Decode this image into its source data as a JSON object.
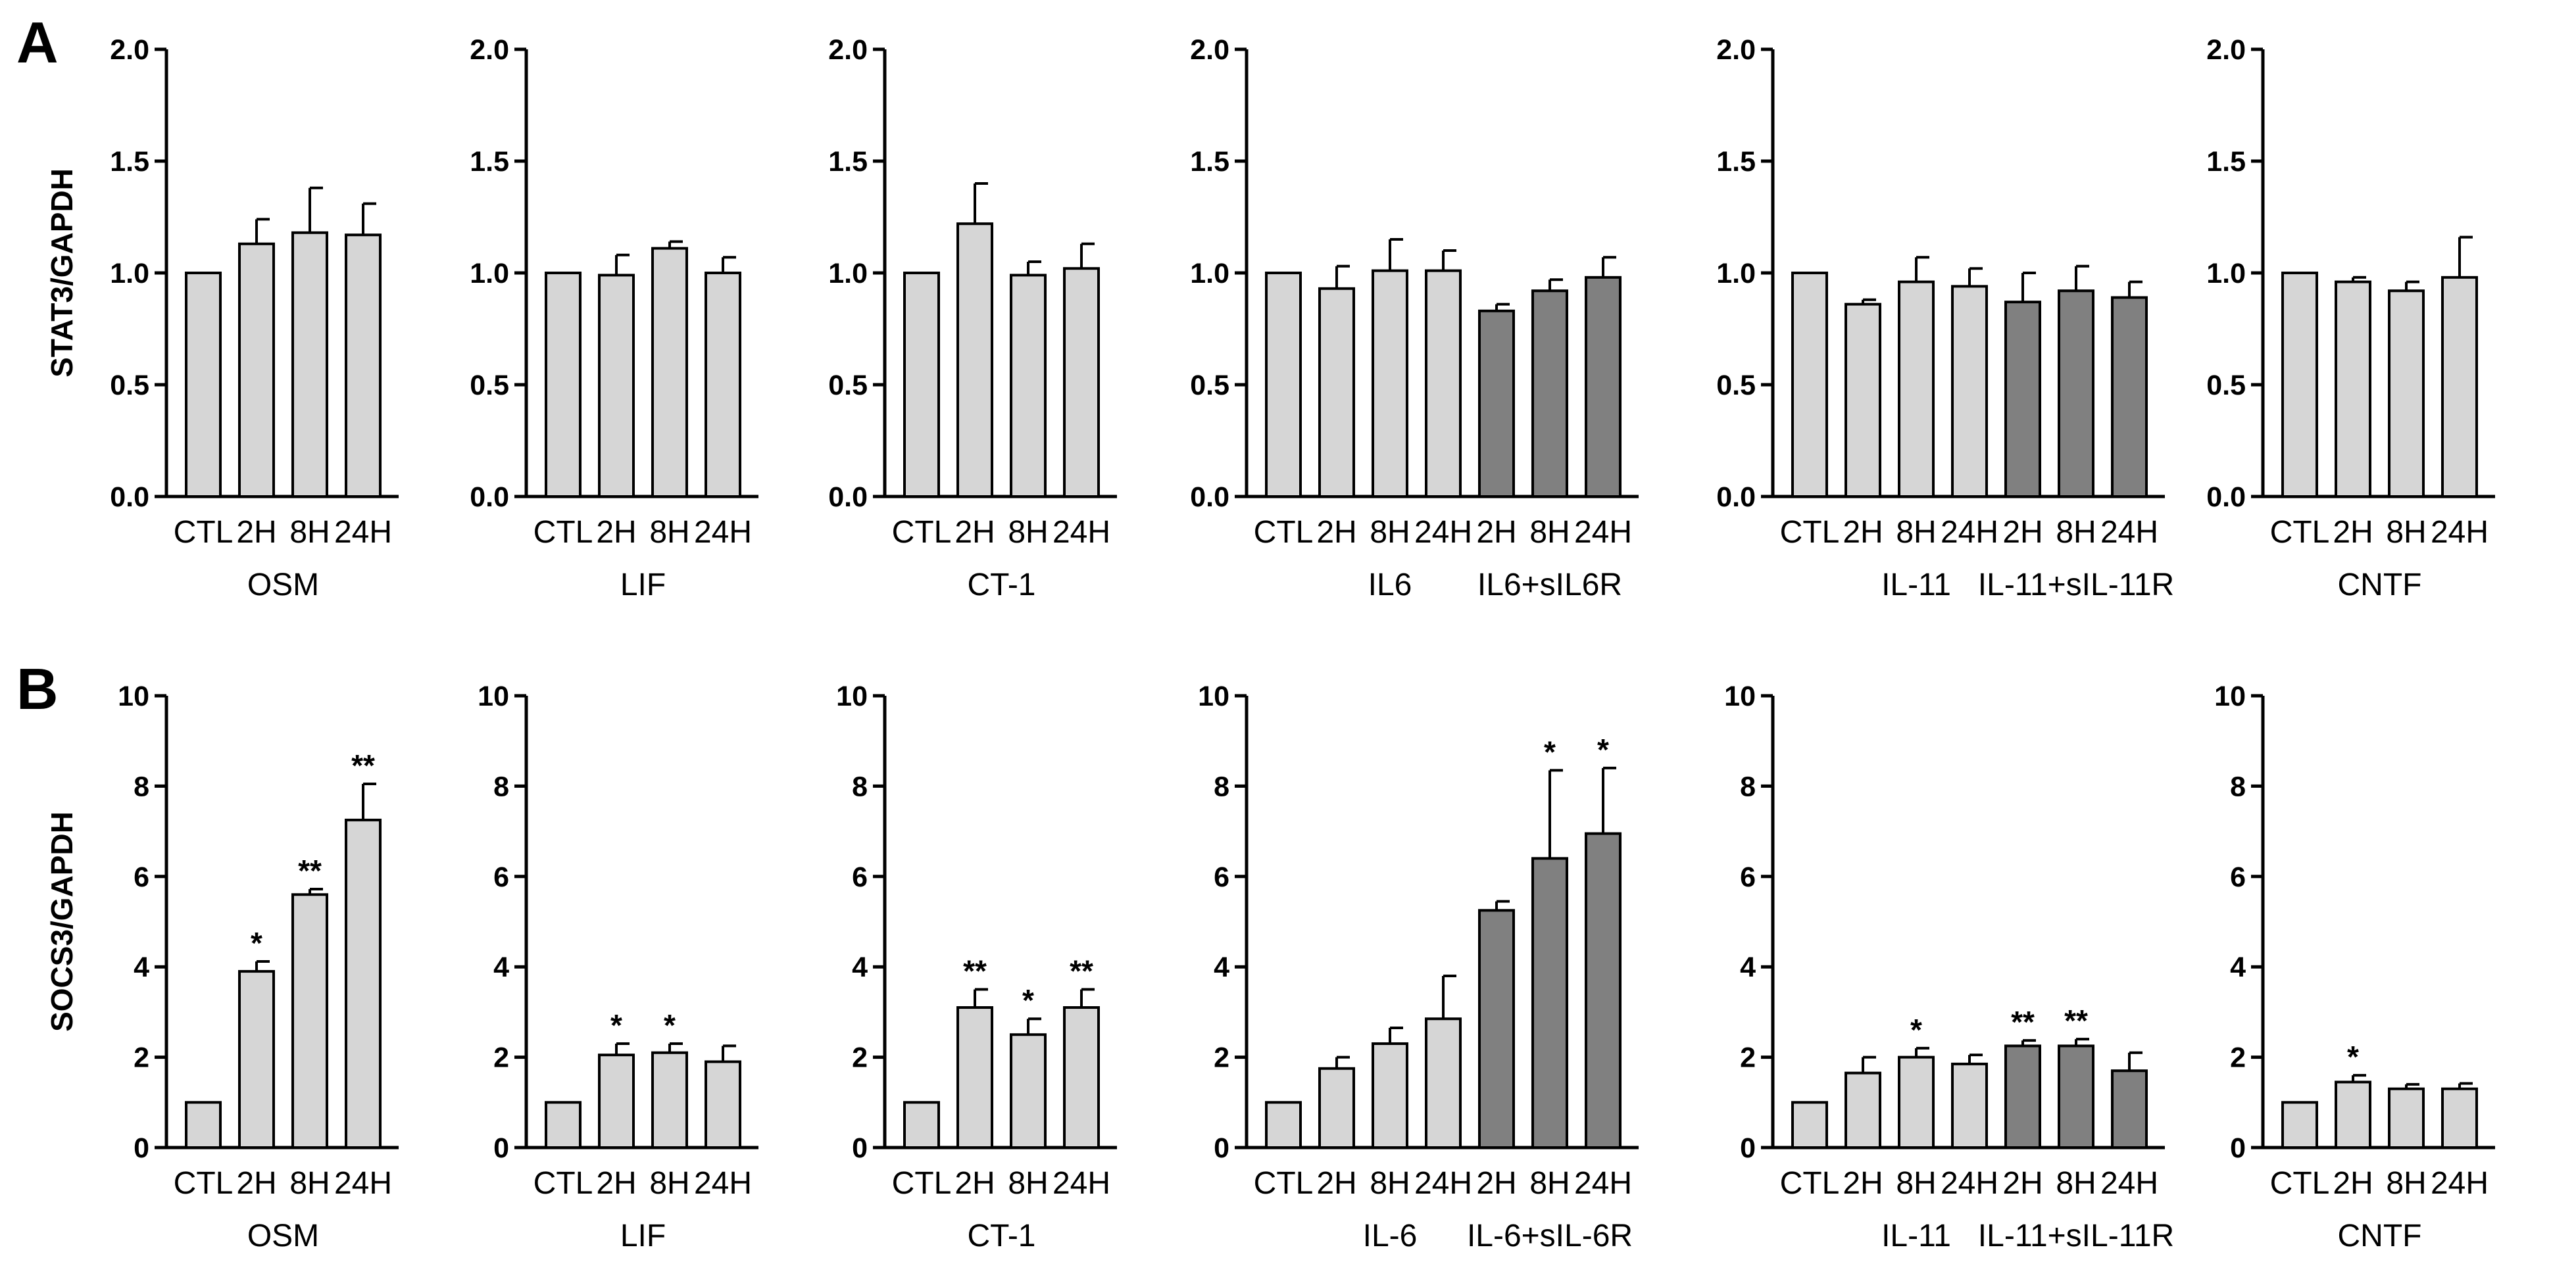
{
  "colors": {
    "light": "#d6d6d6",
    "dark": "#808080",
    "stroke": "#000000"
  },
  "chart_data": [
    {
      "type": "bar",
      "panel": "A",
      "panel_letter": "A",
      "ylabel": "STAT3/GAPDH",
      "ylim": [
        0,
        2.0
      ],
      "yticks": [
        "0.0",
        "0.5",
        "1.0",
        "1.5",
        "2.0"
      ],
      "categories": [
        "CTL",
        "2H",
        "8H",
        "24H"
      ],
      "values": [
        1.0,
        1.13,
        1.18,
        1.17
      ],
      "errors": [
        0,
        0.11,
        0.2,
        0.14
      ],
      "dark": [
        false,
        false,
        false,
        false
      ],
      "significance": [
        "",
        "",
        "",
        ""
      ],
      "groups": [
        {
          "label": "OSM",
          "start": 0,
          "end": 3
        }
      ]
    },
    {
      "type": "bar",
      "panel": "A",
      "ylim": [
        0,
        2.0
      ],
      "yticks": [
        "0.0",
        "0.5",
        "1.0",
        "1.5",
        "2.0"
      ],
      "categories": [
        "CTL",
        "2H",
        "8H",
        "24H"
      ],
      "values": [
        1.0,
        0.99,
        1.11,
        1.0
      ],
      "errors": [
        0,
        0.09,
        0.03,
        0.07
      ],
      "dark": [
        false,
        false,
        false,
        false
      ],
      "significance": [
        "",
        "",
        "",
        ""
      ],
      "groups": [
        {
          "label": "LIF",
          "start": 0,
          "end": 3
        }
      ]
    },
    {
      "type": "bar",
      "panel": "A",
      "ylim": [
        0,
        2.0
      ],
      "yticks": [
        "0.0",
        "0.5",
        "1.0",
        "1.5",
        "2.0"
      ],
      "categories": [
        "CTL",
        "2H",
        "8H",
        "24H"
      ],
      "values": [
        1.0,
        1.22,
        0.99,
        1.02
      ],
      "errors": [
        0,
        0.18,
        0.06,
        0.11
      ],
      "dark": [
        false,
        false,
        false,
        false
      ],
      "significance": [
        "",
        "",
        "",
        ""
      ],
      "groups": [
        {
          "label": "CT-1",
          "start": 0,
          "end": 3
        }
      ]
    },
    {
      "type": "bar",
      "panel": "A",
      "ylim": [
        0,
        2.0
      ],
      "yticks": [
        "0.0",
        "0.5",
        "1.0",
        "1.5",
        "2.0"
      ],
      "categories": [
        "CTL",
        "2H",
        "8H",
        "24H",
        "2H",
        "8H",
        "24H"
      ],
      "values": [
        1.0,
        0.93,
        1.01,
        1.01,
        0.83,
        0.92,
        0.98
      ],
      "errors": [
        0,
        0.1,
        0.14,
        0.09,
        0.03,
        0.05,
        0.09
      ],
      "dark": [
        false,
        false,
        false,
        false,
        true,
        true,
        true
      ],
      "significance": [
        "",
        "",
        "",
        "",
        "",
        "",
        ""
      ],
      "groups": [
        {
          "label": "IL6",
          "start": 1,
          "end": 3
        },
        {
          "label": "IL6+sIL6R",
          "start": 4,
          "end": 6
        }
      ]
    },
    {
      "type": "bar",
      "panel": "A",
      "ylim": [
        0,
        2.0
      ],
      "yticks": [
        "0.0",
        "0.5",
        "1.0",
        "1.5",
        "2.0"
      ],
      "categories": [
        "CTL",
        "2H",
        "8H",
        "24H",
        "2H",
        "8H",
        "24H"
      ],
      "values": [
        1.0,
        0.86,
        0.96,
        0.94,
        0.87,
        0.92,
        0.89
      ],
      "errors": [
        0,
        0.02,
        0.11,
        0.08,
        0.13,
        0.11,
        0.07
      ],
      "dark": [
        false,
        false,
        false,
        false,
        true,
        true,
        true
      ],
      "significance": [
        "",
        "",
        "",
        "",
        "",
        "",
        ""
      ],
      "groups": [
        {
          "label": "IL-11",
          "start": 1,
          "end": 3
        },
        {
          "label": "IL-11+sIL-11R",
          "start": 4,
          "end": 6
        }
      ]
    },
    {
      "type": "bar",
      "panel": "A",
      "ylim": [
        0,
        2.0
      ],
      "yticks": [
        "0.0",
        "0.5",
        "1.0",
        "1.5",
        "2.0"
      ],
      "categories": [
        "CTL",
        "2H",
        "8H",
        "24H"
      ],
      "values": [
        1.0,
        0.96,
        0.92,
        0.98
      ],
      "errors": [
        0,
        0.02,
        0.04,
        0.18
      ],
      "dark": [
        false,
        false,
        false,
        false
      ],
      "significance": [
        "",
        "",
        "",
        ""
      ],
      "groups": [
        {
          "label": "CNTF",
          "start": 0,
          "end": 3
        }
      ]
    },
    {
      "type": "bar",
      "panel": "B",
      "panel_letter": "B",
      "ylabel": "SOCS3/GAPDH",
      "ylim": [
        0,
        10
      ],
      "yticks": [
        "0",
        "2",
        "4",
        "6",
        "8",
        "10"
      ],
      "categories": [
        "CTL",
        "2H",
        "8H",
        "24H"
      ],
      "values": [
        1.0,
        3.9,
        5.6,
        7.25
      ],
      "errors": [
        0,
        0.22,
        0.12,
        0.8
      ],
      "dark": [
        false,
        false,
        false,
        false
      ],
      "significance": [
        "",
        "*",
        "**",
        "**"
      ],
      "groups": [
        {
          "label": "OSM",
          "start": 0,
          "end": 3
        }
      ]
    },
    {
      "type": "bar",
      "panel": "B",
      "ylim": [
        0,
        10
      ],
      "yticks": [
        "0",
        "2",
        "4",
        "6",
        "8",
        "10"
      ],
      "categories": [
        "CTL",
        "2H",
        "8H",
        "24H"
      ],
      "values": [
        1.0,
        2.05,
        2.1,
        1.9
      ],
      "errors": [
        0,
        0.25,
        0.2,
        0.35
      ],
      "dark": [
        false,
        false,
        false,
        false
      ],
      "significance": [
        "",
        "*",
        "*",
        ""
      ],
      "groups": [
        {
          "label": "LIF",
          "start": 0,
          "end": 3
        }
      ]
    },
    {
      "type": "bar",
      "panel": "B",
      "ylim": [
        0,
        10
      ],
      "yticks": [
        "0",
        "2",
        "4",
        "6",
        "8",
        "10"
      ],
      "categories": [
        "CTL",
        "2H",
        "8H",
        "24H"
      ],
      "values": [
        1.0,
        3.1,
        2.5,
        3.1
      ],
      "errors": [
        0,
        0.4,
        0.35,
        0.4
      ],
      "dark": [
        false,
        false,
        false,
        false
      ],
      "significance": [
        "",
        "**",
        "*",
        "**"
      ],
      "groups": [
        {
          "label": "CT-1",
          "start": 0,
          "end": 3
        }
      ]
    },
    {
      "type": "bar",
      "panel": "B",
      "ylim": [
        0,
        10
      ],
      "yticks": [
        "0",
        "2",
        "4",
        "6",
        "8",
        "10"
      ],
      "categories": [
        "CTL",
        "2H",
        "8H",
        "24H",
        "2H",
        "8H",
        "24H"
      ],
      "values": [
        1.0,
        1.75,
        2.3,
        2.85,
        5.25,
        6.4,
        6.95
      ],
      "errors": [
        0,
        0.25,
        0.35,
        0.95,
        0.2,
        1.95,
        1.45
      ],
      "dark": [
        false,
        false,
        false,
        false,
        true,
        true,
        true
      ],
      "significance": [
        "",
        "",
        "",
        "",
        "",
        "*",
        "*"
      ],
      "groups": [
        {
          "label": "IL-6",
          "start": 1,
          "end": 3
        },
        {
          "label": "IL-6+sIL-6R",
          "start": 4,
          "end": 6
        }
      ]
    },
    {
      "type": "bar",
      "panel": "B",
      "ylim": [
        0,
        10
      ],
      "yticks": [
        "0",
        "2",
        "4",
        "6",
        "8",
        "10"
      ],
      "categories": [
        "CTL",
        "2H",
        "8H",
        "24H",
        "2H",
        "8H",
        "24H"
      ],
      "values": [
        1.0,
        1.65,
        2.0,
        1.85,
        2.25,
        2.25,
        1.7
      ],
      "errors": [
        0,
        0.35,
        0.2,
        0.2,
        0.12,
        0.15,
        0.4
      ],
      "dark": [
        false,
        false,
        false,
        false,
        true,
        true,
        true
      ],
      "significance": [
        "",
        "",
        "*",
        "",
        "**",
        "**",
        ""
      ],
      "groups": [
        {
          "label": "IL-11",
          "start": 1,
          "end": 3
        },
        {
          "label": "IL-11+sIL-11R",
          "start": 4,
          "end": 6
        }
      ]
    },
    {
      "type": "bar",
      "panel": "B",
      "ylim": [
        0,
        10
      ],
      "yticks": [
        "0",
        "2",
        "4",
        "6",
        "8",
        "10"
      ],
      "categories": [
        "CTL",
        "2H",
        "8H",
        "24H"
      ],
      "values": [
        1.0,
        1.45,
        1.3,
        1.3
      ],
      "errors": [
        0,
        0.15,
        0.1,
        0.12
      ],
      "dark": [
        false,
        false,
        false,
        false
      ],
      "significance": [
        "",
        "*",
        "",
        ""
      ],
      "groups": [
        {
          "label": "CNTF",
          "start": 0,
          "end": 3
        }
      ]
    }
  ]
}
